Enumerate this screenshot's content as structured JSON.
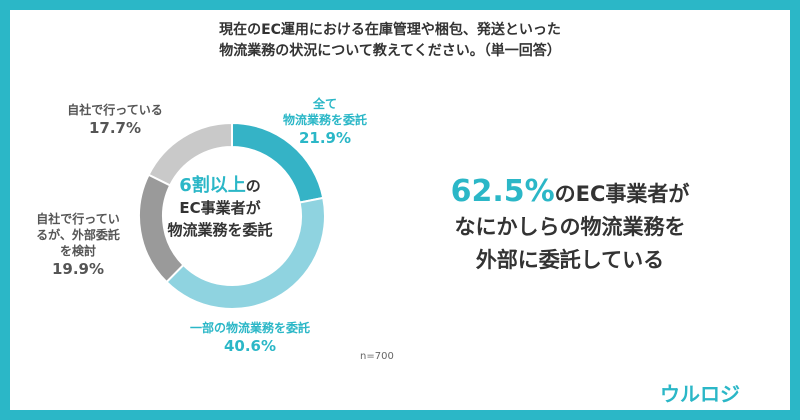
{
  "title": {
    "line1": "現在のEC運用における在庫管理や梱包、発送といった",
    "line2": "物流業務の状況について教えてください。（単一回答）"
  },
  "chart_data": {
    "type": "pie",
    "title": "現在のEC運用における在庫管理や梱包、発送といった 物流業務の状況について教えてください。（単一回答）",
    "slices": [
      {
        "label": "全て物流業務を委託",
        "label_lines": [
          "全て",
          "物流業務を委託"
        ],
        "value": 21.9,
        "value_text": "21.9%",
        "color": "#35b3c6"
      },
      {
        "label": "一部の物流業務を委託",
        "label_lines": [
          "一部の物流業務を委託"
        ],
        "value": 40.6,
        "value_text": "40.6%",
        "color": "#8fd3e0"
      },
      {
        "label": "自社で行っているが、外部委託を検討",
        "label_lines": [
          "自社で行ってい",
          "るが、外部委託",
          "を検討"
        ],
        "value": 19.9,
        "value_text": "19.9%",
        "color": "#9a9a9a"
      },
      {
        "label": "自社で行っている",
        "label_lines": [
          "自社で行っている"
        ],
        "value": 17.7,
        "value_text": "17.7%",
        "color": "#c9c9c9"
      }
    ],
    "center_text": {
      "highlight": "6割以上",
      "suffix": "の",
      "line2": "EC事業者が",
      "line3": "物流業務を委託"
    },
    "legend": "none"
  },
  "headline": {
    "big": "62.5%",
    "part1": "のEC事業者が",
    "line2": "なにかしらの物流業務を",
    "line3": "外部に委託している"
  },
  "sample": "n=700",
  "logo": "ウルロジ",
  "colors": {
    "accent": "#2bb7c7",
    "text": "#333333"
  }
}
